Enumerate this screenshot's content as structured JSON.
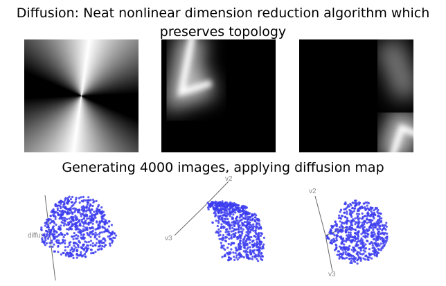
{
  "title_lines": [
    "Diffusion: Neat nonlinear dimension reduction algorithm which",
    "preserves topology"
  ],
  "subtitle": "Generating 4000 images, applying diffusion map",
  "plots": [
    {
      "labels": [
        "diffusio"
      ]
    },
    {
      "labels": [
        "v2",
        "v3"
      ]
    },
    {
      "labels": [
        "v2",
        "v3"
      ]
    }
  ]
}
